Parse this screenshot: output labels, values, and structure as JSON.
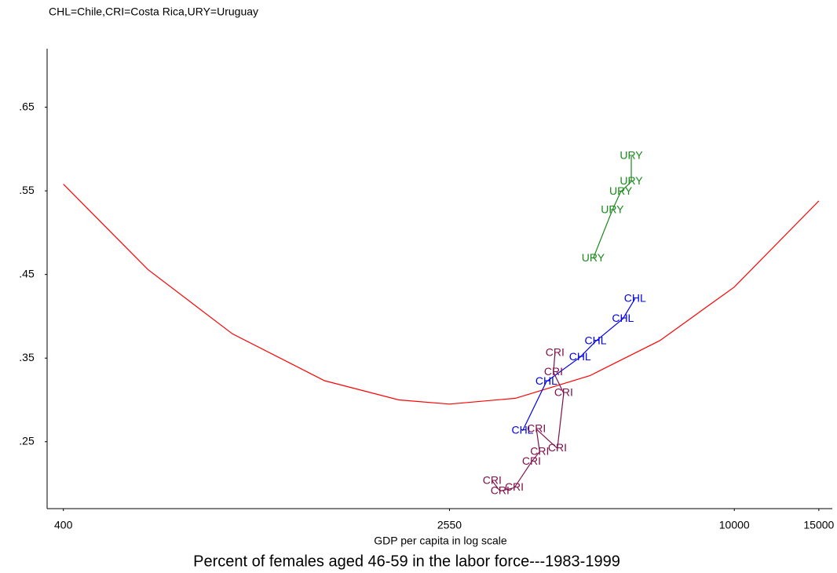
{
  "chart_data": {
    "type": "labeled-line",
    "note": "CHL=Chile,CRI=Costa Rica,URY=Uruguay",
    "x_label": "GDP per capita in log scale",
    "caption": "Percent of females aged 46-59 in the labor force---1983-1999",
    "x_scale": "log",
    "xlim": [
      370,
      16000
    ],
    "xticks": [
      400,
      2550,
      10000,
      15000
    ],
    "ylim": [
      0.17,
      0.72
    ],
    "yticks": [
      {
        "value": 0.25,
        "label": ".25"
      },
      {
        "value": 0.35,
        "label": ".35"
      },
      {
        "value": 0.45,
        "label": ".45"
      },
      {
        "value": 0.55,
        "label": ".55"
      },
      {
        "value": 0.65,
        "label": ".65"
      }
    ],
    "grid": false,
    "series": [
      {
        "name": "URY",
        "color": "#1a8a1a",
        "x": [
          5080,
          5570,
          5800,
          6100,
          6100
        ],
        "values": [
          0.469,
          0.527,
          0.549,
          0.561,
          0.5915
        ]
      },
      {
        "name": "CHL",
        "color": "#0000ee",
        "x": [
          3620,
          4060,
          4770,
          5140,
          5860,
          6210
        ],
        "values": [
          0.263,
          0.322,
          0.351,
          0.37,
          0.397,
          0.421
        ]
      },
      {
        "name": "CRI",
        "color": "#80104a",
        "x": [
          3130,
          3250,
          3480,
          3780,
          3930,
          3870,
          4280,
          4410,
          4200,
          4230
        ],
        "values": [
          0.203,
          0.191,
          0.195,
          0.226,
          0.238,
          0.265,
          0.242,
          0.308,
          0.333,
          0.356
        ]
      }
    ],
    "fit": {
      "color": "#ff0000",
      "x": [
        400,
        600,
        900,
        1400,
        2000,
        2550,
        3500,
        5000,
        7000,
        10000,
        15000
      ],
      "values": [
        0.558,
        0.456,
        0.379,
        0.323,
        0.3,
        0.295,
        0.302,
        0.329,
        0.371,
        0.435,
        0.538
      ]
    }
  }
}
